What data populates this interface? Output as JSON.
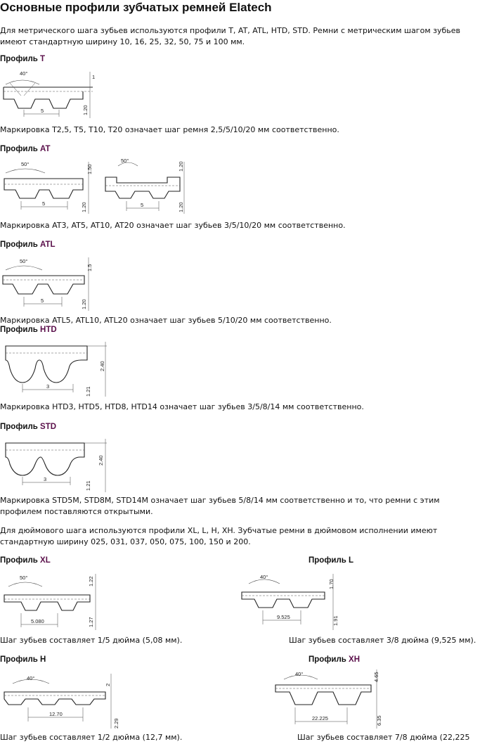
{
  "page": {
    "title": "Основные профили зубчатых ремней Elatech",
    "intro_metric": "Для метрического шага зубьев используются профили T, AT, ATL, HTD, STD. Ремни с метрическим шагом зубьев имеют стандартную ширину 10, 16, 25, 32, 50, 75 и 100 мм.",
    "intro_inch": "Для дюймового шага используются профили XL, L, H, XH. Зубчатые ремни в дюймовом исполнении имеют стандартную ширину 025, 031, 037, 050, 075, 100, 150 и 200."
  },
  "profiles": {
    "t": {
      "title_prefix": "Профиль ",
      "title_accent": "T",
      "caption": "Маркировка T2,5, T5, T10, T20 означает шаг ремня 2,5/5/10/20 мм соответственно.",
      "dims": {
        "angle": "40°",
        "pitch": "5",
        "h1": "1",
        "h2": "1.20"
      }
    },
    "at": {
      "title_prefix": "Профиль ",
      "title_accent": "AT",
      "caption": "Маркировка AT3, AT5, AT10, AT20 означает шаг зубьев 3/5/10/20 мм соответственно.",
      "dims_a": {
        "angle": "50°",
        "pitch": "5",
        "h1": "1.50",
        "h2": "1.20"
      },
      "dims_b": {
        "angle": "50°",
        "pitch": "5",
        "h1": "1.20",
        "h2": "1.20"
      }
    },
    "atl": {
      "title_prefix": "Профиль ",
      "title_accent": "ATL",
      "caption": "Маркировка ATL5, ATL10, ATL20 означает шаг зубьев 5/10/20 мм соответственно.",
      "dims": {
        "angle": "50°",
        "pitch": "5",
        "h1": "1.5",
        "h2": "1.20"
      }
    },
    "htd": {
      "title_prefix": "Профиль ",
      "title_accent": "HTD",
      "caption": "Маркировка HTD3, HTD5, HTD8, HTD14 означает шаг зубьев 3/5/8/14 мм соответственно.",
      "dims": {
        "pitch": "3",
        "h1": "2.40",
        "h2": "1.21"
      }
    },
    "std": {
      "title_prefix": "Профиль ",
      "title_accent": "STD",
      "caption": "Маркировка STD5M, STD8M, STD14M означает шаг зубьев 5/8/14 мм соответственно и то, что ремни с этим профилем поставляются открытыми.",
      "dims": {
        "pitch": "3",
        "h1": "2.40",
        "h2": "1.21"
      }
    },
    "xl": {
      "title_prefix": "Профиль ",
      "title_accent": "XL",
      "caption": "Шаг зубьев составляет 1/5 дюйма (5,08 мм).",
      "dims": {
        "angle": "50°",
        "pitch": "5.080",
        "h1": "1.22",
        "h2": "1.27"
      }
    },
    "l": {
      "title_prefix": "Профиль ",
      "title_accent": "L",
      "caption": "Шаг зубьев составляет 3/8 дюйма (9,525 мм).",
      "dims": {
        "angle": "40°",
        "pitch": "9.525",
        "h1": "1.70",
        "h2": "1.91"
      }
    },
    "h": {
      "title_prefix": "Профиль ",
      "title_accent": "H",
      "caption": "Шаг зубьев составляет 1/2 дюйма (12,7 мм).",
      "dims": {
        "angle": "40°",
        "pitch": "12.70",
        "h1": "2",
        "h2": "2.29"
      }
    },
    "xh": {
      "title_prefix": "Профиль ",
      "title_accent": "XH",
      "caption": "Шаг зубьев составляет 7/8 дюйма (22,225",
      "dims": {
        "angle": "40°",
        "pitch": "22.225",
        "h1": "4.65",
        "h2": "6.35"
      }
    }
  }
}
